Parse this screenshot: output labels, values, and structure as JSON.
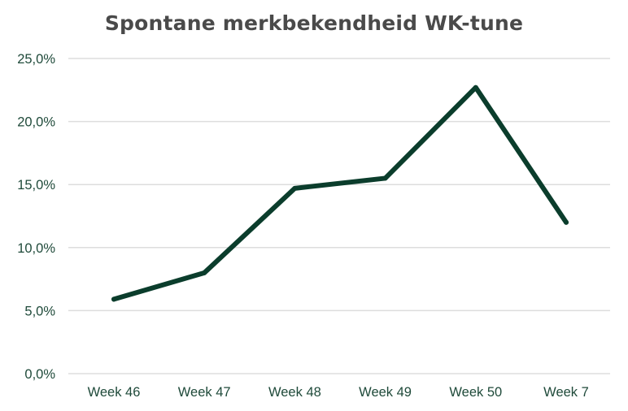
{
  "chart_data": {
    "type": "line",
    "title": "Spontane merkbekendheid WK-tune",
    "xlabel": "",
    "ylabel": "",
    "categories": [
      "Week 46",
      "Week 47",
      "Week 48",
      "Week 49",
      "Week 50",
      "Week 7"
    ],
    "series": [
      {
        "values": [
          5.9,
          8.0,
          14.7,
          15.5,
          22.7,
          12.0
        ]
      }
    ],
    "ylim": [
      0,
      25
    ],
    "yticks": [
      "0,0%",
      "5,0%",
      "10,0%",
      "15,0%",
      "20,0%",
      "25,0%"
    ],
    "grid": true,
    "legend": "none",
    "colors": {
      "line": "#0b3d2c",
      "grid": "#dddddd",
      "tick_text": "#1f4a3a",
      "title": "#4a4a4a"
    }
  }
}
